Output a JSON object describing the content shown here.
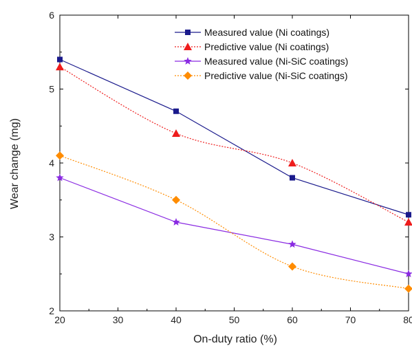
{
  "chart_data": {
    "type": "line",
    "xlabel": "On-duty ratio (%)",
    "ylabel": "Wear change (mg)",
    "xlim": [
      20,
      80
    ],
    "ylim": [
      2,
      6
    ],
    "xticks": [
      20,
      30,
      40,
      50,
      60,
      70,
      80
    ],
    "yticks": [
      2,
      3,
      4,
      5,
      6
    ],
    "grid": false,
    "legend_position": "top-right",
    "series": [
      {
        "name": "Measured value (Ni coatings)",
        "x": [
          20,
          40,
          60,
          80
        ],
        "y": [
          5.4,
          4.7,
          3.8,
          3.3
        ],
        "color": "#1a1a8c",
        "line_style": "solid",
        "marker": "square"
      },
      {
        "name": "Predictive value (Ni coatings)",
        "x": [
          20,
          40,
          60,
          80
        ],
        "y": [
          5.3,
          4.4,
          4.0,
          3.2
        ],
        "color": "#ee1c1c",
        "line_style": "dotted",
        "marker": "triangle"
      },
      {
        "name": "Measured value (Ni-SiC coatings)",
        "x": [
          20,
          40,
          60,
          80
        ],
        "y": [
          3.8,
          3.2,
          2.9,
          2.5
        ],
        "color": "#8a2be2",
        "line_style": "solid",
        "marker": "star"
      },
      {
        "name": "Predictive value (Ni-SiC coatings)",
        "x": [
          20,
          40,
          60,
          80
        ],
        "y": [
          4.1,
          3.5,
          2.6,
          2.3
        ],
        "color": "#ff8c00",
        "line_style": "dotted",
        "marker": "diamond"
      }
    ]
  }
}
